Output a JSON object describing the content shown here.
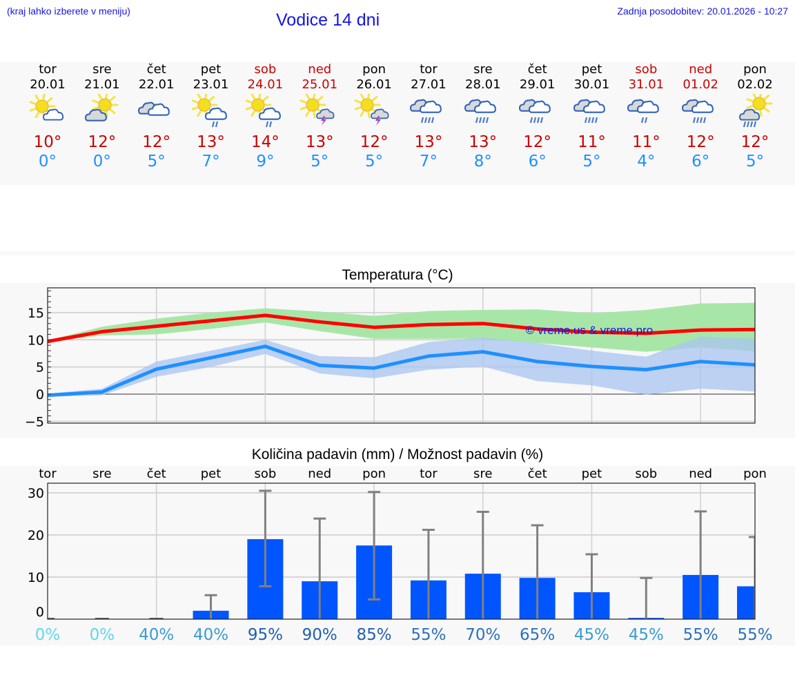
{
  "header": {
    "hint": "(kraj lahko izberete v meniju)",
    "title": "Vodice 14 dni",
    "updated": "Zadnja posodobitev: 20.01.2026 - 10:27"
  },
  "days": [
    {
      "name": "tor",
      "date": "20.01",
      "weekend": false,
      "icon": "sun-cloud-icon",
      "tmax": "10°",
      "tmin": "0°"
    },
    {
      "name": "sre",
      "date": "21.01",
      "weekend": false,
      "icon": "cloud-sun-icon",
      "tmax": "12°",
      "tmin": "0°"
    },
    {
      "name": "čet",
      "date": "22.01",
      "weekend": false,
      "icon": "cloudy-icon",
      "tmax": "12°",
      "tmin": "5°"
    },
    {
      "name": "pet",
      "date": "23.01",
      "weekend": false,
      "icon": "sun-cloud-light-rain-icon",
      "tmax": "13°",
      "tmin": "7°"
    },
    {
      "name": "sob",
      "date": "24.01",
      "weekend": true,
      "icon": "sun-cloud-light-rain-icon",
      "tmax": "14°",
      "tmin": "9°"
    },
    {
      "name": "ned",
      "date": "25.01",
      "weekend": true,
      "icon": "sun-thunderstorm-icon",
      "tmax": "13°",
      "tmin": "5°"
    },
    {
      "name": "pon",
      "date": "26.01",
      "weekend": false,
      "icon": "sun-thunderstorm-icon",
      "tmax": "12°",
      "tmin": "5°"
    },
    {
      "name": "tor",
      "date": "27.01",
      "weekend": false,
      "icon": "cloudy-rain-icon",
      "tmax": "13°",
      "tmin": "7°"
    },
    {
      "name": "sre",
      "date": "28.01",
      "weekend": false,
      "icon": "cloudy-rain-icon",
      "tmax": "13°",
      "tmin": "8°"
    },
    {
      "name": "čet",
      "date": "29.01",
      "weekend": false,
      "icon": "cloudy-rain-icon",
      "tmax": "12°",
      "tmin": "6°"
    },
    {
      "name": "pet",
      "date": "30.01",
      "weekend": false,
      "icon": "cloudy-rain-icon",
      "tmax": "11°",
      "tmin": "5°"
    },
    {
      "name": "sob",
      "date": "31.01",
      "weekend": true,
      "icon": "cloudy-light-rain-icon",
      "tmax": "11°",
      "tmin": "4°"
    },
    {
      "name": "ned",
      "date": "01.02",
      "weekend": true,
      "icon": "cloudy-rain-icon",
      "tmax": "12°",
      "tmin": "6°"
    },
    {
      "name": "pon",
      "date": "02.02",
      "weekend": false,
      "icon": "sun-cloud-rain-icon",
      "tmax": "12°",
      "tmin": "5°"
    }
  ],
  "colors": {
    "tmax": "#cc0000",
    "tmin": "#1e90ff",
    "title_blue": "#1414e6",
    "max_line": "#ff0000",
    "max_band": "#a8e6a8",
    "min_line": "#1e90ff",
    "min_band": "#a9c4f2",
    "bar": "#0055ff",
    "errorbar": "#808080"
  },
  "chart_data": [
    {
      "type": "line",
      "title": "Temperatura (°C)",
      "xlabel": "",
      "ylabel": "",
      "ylim": [
        -5.5,
        19.5
      ],
      "yticks": [
        -5,
        0,
        5,
        10,
        15
      ],
      "grid": true,
      "watermark": "© vreme.us & vreme.pro",
      "x": [
        "20.01",
        "21.01",
        "22.01",
        "23.01",
        "24.01",
        "25.01",
        "26.01",
        "27.01",
        "28.01",
        "29.01",
        "30.01",
        "31.01",
        "01.02",
        "02.02"
      ],
      "series": [
        {
          "name": "max",
          "values": [
            9.7,
            11.5,
            12.5,
            13.5,
            14.5,
            13.3,
            12.3,
            12.8,
            13.0,
            12.0,
            11.4,
            11.2,
            11.8,
            11.9
          ]
        },
        {
          "name": "max_band_low",
          "values": [
            9.6,
            10.8,
            11.0,
            12.0,
            13.2,
            11.6,
            10.2,
            10.2,
            10.2,
            9.4,
            8.6,
            7.8,
            8.6,
            7.9
          ]
        },
        {
          "name": "max_band_high",
          "values": [
            9.9,
            12.4,
            13.9,
            15.0,
            15.8,
            15.2,
            14.4,
            15.3,
            15.5,
            15.6,
            14.9,
            15.5,
            16.7,
            16.8
          ]
        },
        {
          "name": "min",
          "values": [
            -0.2,
            0.4,
            4.6,
            6.7,
            8.8,
            5.3,
            4.8,
            7.0,
            7.8,
            6.0,
            5.1,
            4.5,
            6.0,
            5.4
          ]
        },
        {
          "name": "min_band_low",
          "values": [
            -0.5,
            -0.2,
            3.2,
            5.0,
            7.4,
            3.8,
            2.9,
            4.5,
            5.1,
            2.4,
            1.6,
            -0.1,
            1.0,
            0.5
          ]
        },
        {
          "name": "min_band_high",
          "values": [
            0.1,
            1.0,
            6.0,
            8.0,
            10.0,
            7.0,
            6.8,
            9.6,
            10.4,
            9.4,
            8.0,
            6.9,
            10.6,
            10.2
          ]
        }
      ]
    },
    {
      "type": "bar",
      "title": "Količina padavin (mm) / Možnost padavin (%)",
      "xlabel": "",
      "ylabel": "",
      "ylim": [
        0,
        32.5
      ],
      "yticks": [
        0,
        10,
        20,
        30
      ],
      "grid": true,
      "categories": [
        "tor",
        "sre",
        "čet",
        "pet",
        "sob",
        "ned",
        "pon",
        "tor",
        "sre",
        "čet",
        "pet",
        "sob",
        "ned",
        "pon"
      ],
      "series": [
        {
          "name": "precipitation_mm",
          "values": [
            0,
            0,
            0,
            2.0,
            19.0,
            9.0,
            17.5,
            9.2,
            10.8,
            9.8,
            6.4,
            0.3,
            10.5,
            7.8
          ]
        },
        {
          "name": "error_low",
          "values": [
            0,
            0,
            0,
            0,
            7.8,
            0,
            4.7,
            0,
            0,
            0,
            0,
            0,
            0,
            0
          ]
        },
        {
          "name": "error_high",
          "values": [
            0,
            0,
            0,
            5.7,
            30.5,
            23.9,
            30.2,
            21.2,
            25.5,
            22.3,
            15.4,
            9.8,
            25.6,
            19.5
          ]
        },
        {
          "name": "probability_pct",
          "values": [
            0,
            0,
            40,
            40,
            95,
            90,
            85,
            55,
            70,
            65,
            45,
            45,
            55,
            55
          ]
        }
      ],
      "probability_labels": [
        "0%",
        "0%",
        "40%",
        "40%",
        "95%",
        "90%",
        "85%",
        "55%",
        "70%",
        "65%",
        "45%",
        "45%",
        "55%",
        "55%"
      ],
      "probability_colors": [
        "#5fd8e8",
        "#5fd8e8",
        "#3a9bd5",
        "#3a9bd5",
        "#1f5fb0",
        "#1f5fb0",
        "#1f5fb0",
        "#2a70be",
        "#2a70be",
        "#2a70be",
        "#3a9bd5",
        "#3a9bd5",
        "#2a70be",
        "#2a70be"
      ]
    }
  ]
}
